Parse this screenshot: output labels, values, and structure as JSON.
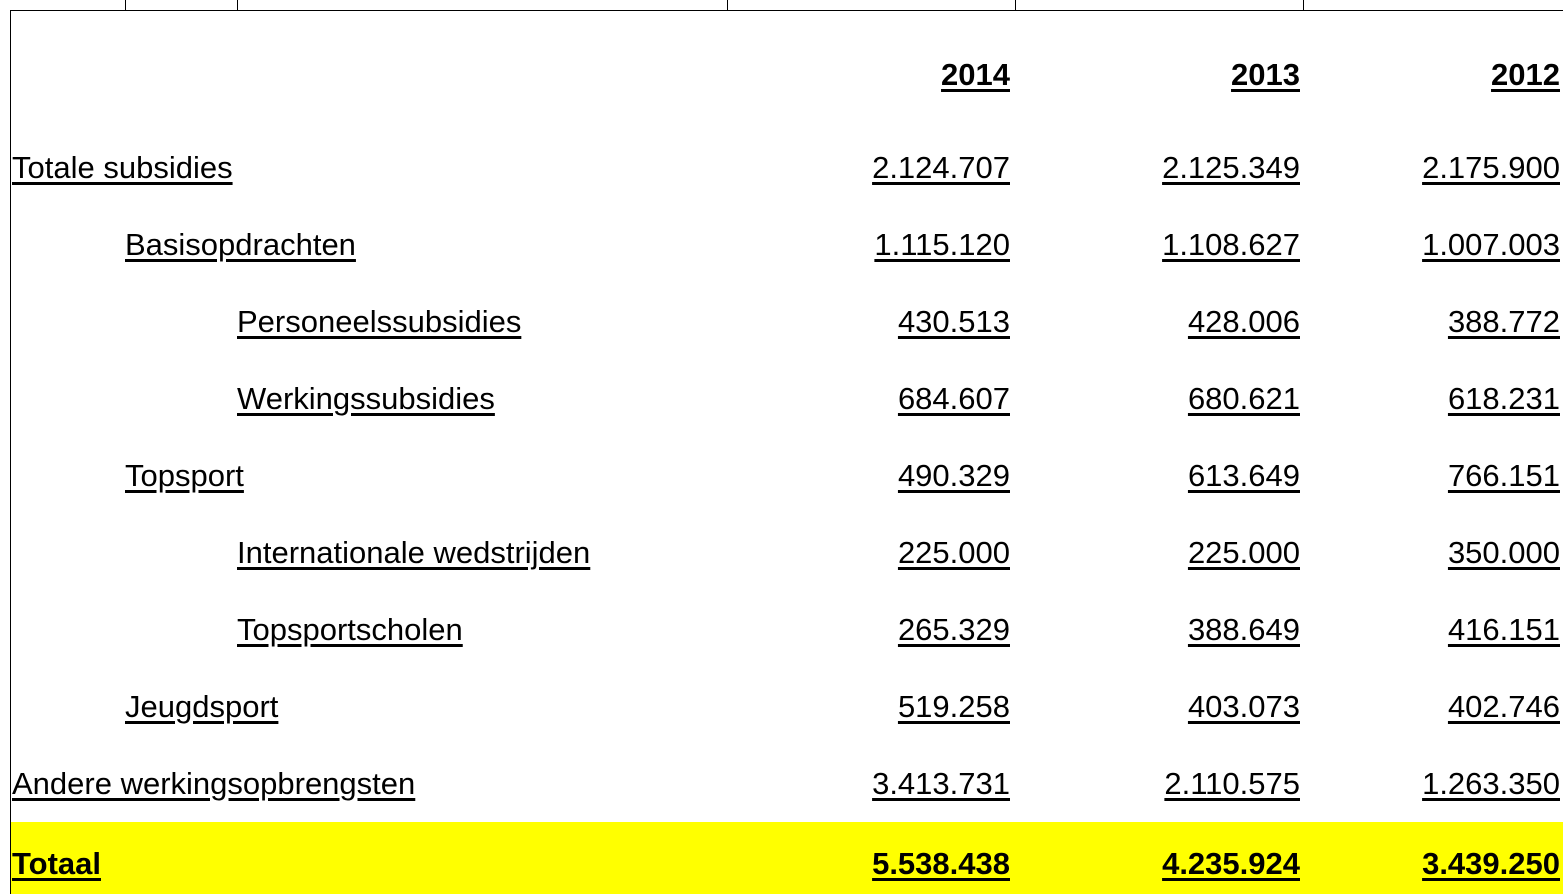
{
  "table": {
    "columns": [
      "2014",
      "2013",
      "2012"
    ],
    "rows": [
      [
        "Totale subsidies",
        "2.124.707",
        "2.125.349",
        "2.175.900"
      ],
      [
        "Basisopdrachten",
        "1.115.120",
        "1.108.627",
        "1.007.003"
      ],
      [
        "Personeelssubsidies",
        "430.513",
        "428.006",
        "388.772"
      ],
      [
        "Werkingssubsidies",
        "684.607",
        "680.621",
        "618.231"
      ],
      [
        "Topsport",
        "490.329",
        "613.649",
        "766.151"
      ],
      [
        "Internationale wedstrijden",
        "225.000",
        "225.000",
        "350.000"
      ],
      [
        "Topsportscholen",
        "265.329",
        "388.649",
        "416.151"
      ],
      [
        "Jeugdsport",
        "519.258",
        "403.073",
        "402.746"
      ],
      [
        "Andere werkingsopbrengsten",
        "3.413.731",
        "2.110.575",
        "1.263.350"
      ],
      [
        "Totaal",
        "5.538.438",
        "4.235.924",
        "3.439.250"
      ]
    ]
  }
}
